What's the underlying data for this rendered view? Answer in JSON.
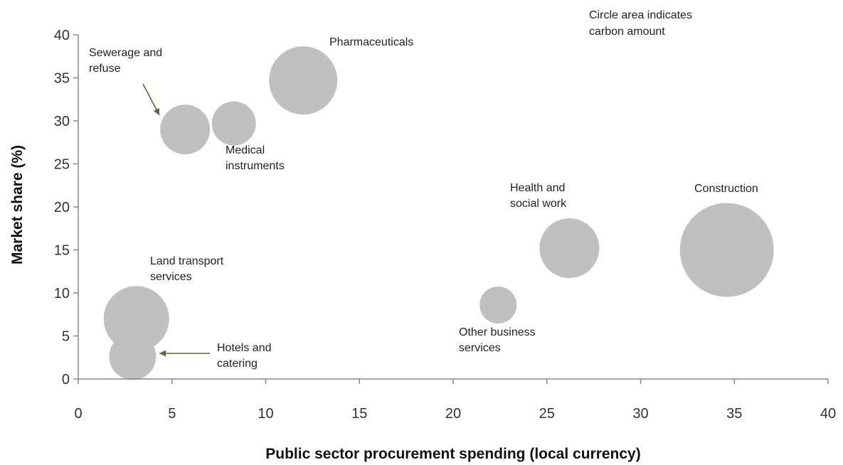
{
  "chart_data": {
    "type": "bubble",
    "xlabel": "Public sector procurement spending (local currency)",
    "ylabel": "Market share (%)",
    "xlim": [
      0,
      40
    ],
    "ylim": [
      0,
      40
    ],
    "xticks": [
      0,
      5,
      10,
      15,
      20,
      25,
      30,
      35,
      40
    ],
    "yticks": [
      0,
      5,
      10,
      15,
      20,
      25,
      30,
      35,
      40
    ],
    "grid": false,
    "note": [
      "Circle area indicates",
      "carbon amount"
    ],
    "bubble_color": "#c0c0c0",
    "arrow_color": "#556b2f",
    "series": [
      {
        "label": [
          "Pharmaceuticals"
        ],
        "x": 12.0,
        "y": 34.7,
        "r": 48
      },
      {
        "label": [
          "Sewerage and",
          "refuse"
        ],
        "x": 5.7,
        "y": 29.0,
        "r": 35
      },
      {
        "label": [
          "Medical",
          "instruments"
        ],
        "x": 8.3,
        "y": 29.7,
        "r": 31
      },
      {
        "label": [
          "Health and",
          "social work"
        ],
        "x": 26.2,
        "y": 15.2,
        "r": 42
      },
      {
        "label": [
          "Construction"
        ],
        "x": 34.6,
        "y": 15.0,
        "r": 66
      },
      {
        "label": [
          "Land transport",
          "services"
        ],
        "x": 3.1,
        "y": 7.0,
        "r": 46
      },
      {
        "label": [
          "Other business",
          "services"
        ],
        "x": 22.4,
        "y": 8.6,
        "r": 26
      },
      {
        "label": [
          "Hotels and",
          "catering"
        ],
        "x": 2.9,
        "y": 2.6,
        "r": 33
      }
    ]
  }
}
